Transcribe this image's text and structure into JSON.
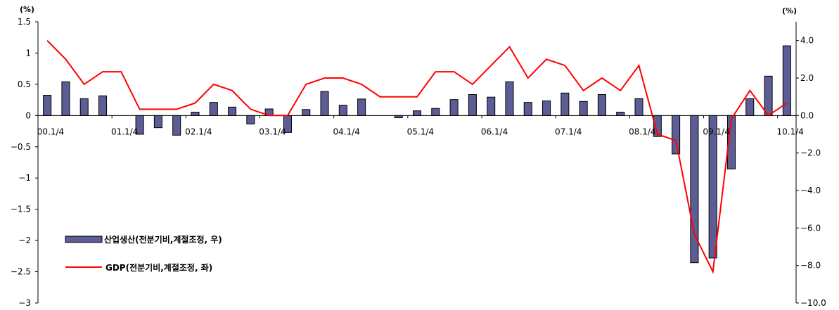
{
  "chart_data": {
    "type": "bar+line",
    "left_axis": {
      "unit": "(%)",
      "ylim": [
        -3,
        1.5
      ],
      "ticks": [
        1.5,
        1,
        0.5,
        0,
        -0.5,
        -1,
        -1.5,
        -2,
        -2.5,
        -3
      ],
      "tick_labels": [
        "1.5",
        "1",
        "0.5",
        "0",
        "−0.5",
        "−1",
        "−1.5",
        "−2",
        "−2.5",
        "−3"
      ]
    },
    "right_axis": {
      "unit": "(%)",
      "ylim": [
        -10,
        5
      ],
      "ticks": [
        4,
        2,
        0,
        -2,
        -4,
        -6,
        -8,
        -10
      ],
      "tick_labels": [
        "4.0",
        "2.0",
        "0.0",
        "−2.0",
        "−4.0",
        "−6.0",
        "−8.0",
        "−10.0"
      ]
    },
    "x_tick_labels": [
      "00.1/4",
      "01.1/4",
      "02.1/4",
      "03.1/4",
      "04.1/4",
      "05.1/4",
      "06.1/4",
      "07.1/4",
      "08.1/4",
      "09.1/4",
      "10.1/4"
    ],
    "quarters": 41,
    "series": [
      {
        "name": "산업생산(전분기비,계절조정, 우)",
        "type": "bar",
        "axis": "right",
        "color": "#5d5d96",
        "values": [
          1.08,
          1.8,
          0.9,
          1.05,
          0.0,
          -1.0,
          -0.65,
          -1.05,
          0.18,
          0.7,
          0.45,
          -0.45,
          0.35,
          -0.9,
          0.32,
          1.28,
          0.55,
          0.88,
          0.0,
          -0.12,
          0.25,
          0.38,
          0.85,
          1.12,
          0.98,
          1.8,
          0.7,
          0.78,
          1.2,
          0.75,
          1.12,
          0.18,
          0.9,
          -1.12,
          -2.05,
          -7.85,
          -7.6,
          -2.85,
          0.9,
          2.1,
          3.72
        ]
      },
      {
        "name": "GDP(전분기비,계절조정, 좌)",
        "type": "line",
        "axis": "left",
        "color": "#ff0000",
        "values": [
          1.2,
          0.9,
          0.5,
          0.7,
          0.7,
          0.1,
          0.1,
          0.1,
          0.2,
          0.5,
          0.4,
          0.1,
          0.0,
          0.0,
          0.5,
          0.6,
          0.6,
          0.5,
          0.3,
          0.3,
          0.3,
          0.7,
          0.7,
          0.5,
          0.8,
          1.1,
          0.6,
          0.9,
          0.8,
          0.4,
          0.6,
          0.4,
          0.8,
          -0.3,
          -0.4,
          -1.9,
          -2.5,
          -0.05,
          0.4,
          0.0,
          0.2
        ]
      }
    ],
    "legend_position": "lower-left"
  }
}
